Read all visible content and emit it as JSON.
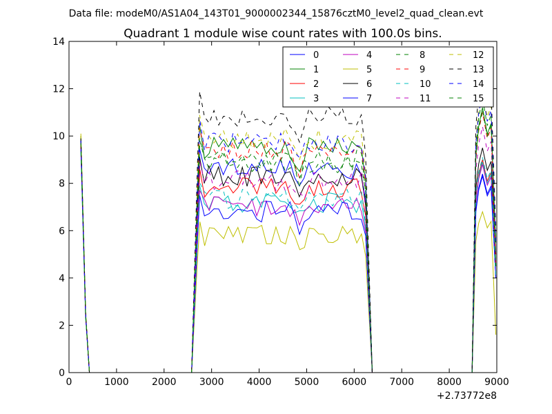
{
  "figure": {
    "suptitle": "Data file: modeM0/AS1A04_143T01_9000002344_15876cztM0_level2_quad_clean.evt"
  },
  "chart_data": {
    "type": "line",
    "title": "Quadrant 1 module wise count rates with 100.0s bins.",
    "xlabel": "",
    "ylabel": "",
    "xlim": [
      0,
      9000
    ],
    "ylim": [
      0,
      14
    ],
    "x_offset_label": "+2.73772e8",
    "xticks": [
      "0",
      "1000",
      "2000",
      "3000",
      "4000",
      "5000",
      "6000",
      "7000",
      "8000",
      "9000"
    ],
    "yticks": [
      "0",
      "2",
      "4",
      "6",
      "8",
      "10",
      "12",
      "14"
    ],
    "grid": false,
    "legend_position": "top-right",
    "series": [
      {
        "name": "0",
        "color": "#0000ff",
        "style": "solid",
        "start": 9.9,
        "level": 8.6,
        "end": 8.3,
        "rampEnd": 4.0
      },
      {
        "name": "1",
        "color": "#008000",
        "style": "solid",
        "start": 10.0,
        "level": 9.5,
        "end": 11.2,
        "rampEnd": 5.5
      },
      {
        "name": "2",
        "color": "#ff0000",
        "style": "solid",
        "start": 9.7,
        "level": 7.8,
        "end": 9.0,
        "rampEnd": 4.0
      },
      {
        "name": "3",
        "color": "#00bfbf",
        "style": "solid",
        "start": 9.5,
        "level": 7.2,
        "end": 8.9,
        "rampEnd": 4.0
      },
      {
        "name": "4",
        "color": "#bf00bf",
        "style": "solid",
        "start": 9.6,
        "level": 7.0,
        "end": 8.8,
        "rampEnd": 4.0
      },
      {
        "name": "5",
        "color": "#bfbf00",
        "style": "solid",
        "start": 10.1,
        "level": 5.8,
        "end": 6.8,
        "rampEnd": 1.6
      },
      {
        "name": "6",
        "color": "#000000",
        "style": "solid",
        "start": 9.8,
        "level": 8.3,
        "end": 9.5,
        "rampEnd": 5.0
      },
      {
        "name": "7",
        "color": "#0000ff",
        "style": "solid",
        "start": 9.4,
        "level": 6.8,
        "end": 8.4,
        "rampEnd": 4.0
      },
      {
        "name": "8",
        "color": "#008000",
        "style": "dashed",
        "start": 9.7,
        "level": 8.9,
        "end": 11.6,
        "rampEnd": 4.5
      },
      {
        "name": "9",
        "color": "#ff0000",
        "style": "dashed",
        "start": 9.6,
        "level": 9.4,
        "end": 11.0,
        "rampEnd": 4.5
      },
      {
        "name": "10",
        "color": "#00bfbf",
        "style": "dashed",
        "start": 9.3,
        "level": 7.3,
        "end": 9.1,
        "rampEnd": 4.0
      },
      {
        "name": "11",
        "color": "#bf00bf",
        "style": "dashed",
        "start": 9.5,
        "level": 8.1,
        "end": 10.4,
        "rampEnd": 4.5
      },
      {
        "name": "12",
        "color": "#bfbf00",
        "style": "dashed",
        "start": 10.0,
        "level": 9.9,
        "end": 12.0,
        "rampEnd": 5.5
      },
      {
        "name": "13",
        "color": "#000000",
        "style": "dashed",
        "start": 9.9,
        "level": 10.8,
        "end": 12.7,
        "rampEnd": 6.0
      },
      {
        "name": "14",
        "color": "#0000ff",
        "style": "dashed",
        "start": 9.8,
        "level": 9.7,
        "end": 11.8,
        "rampEnd": 5.5
      },
      {
        "name": "15",
        "color": "#008000",
        "style": "dashed",
        "start": 9.7,
        "level": 9.0,
        "end": 11.1,
        "rampEnd": 4.5
      }
    ]
  }
}
